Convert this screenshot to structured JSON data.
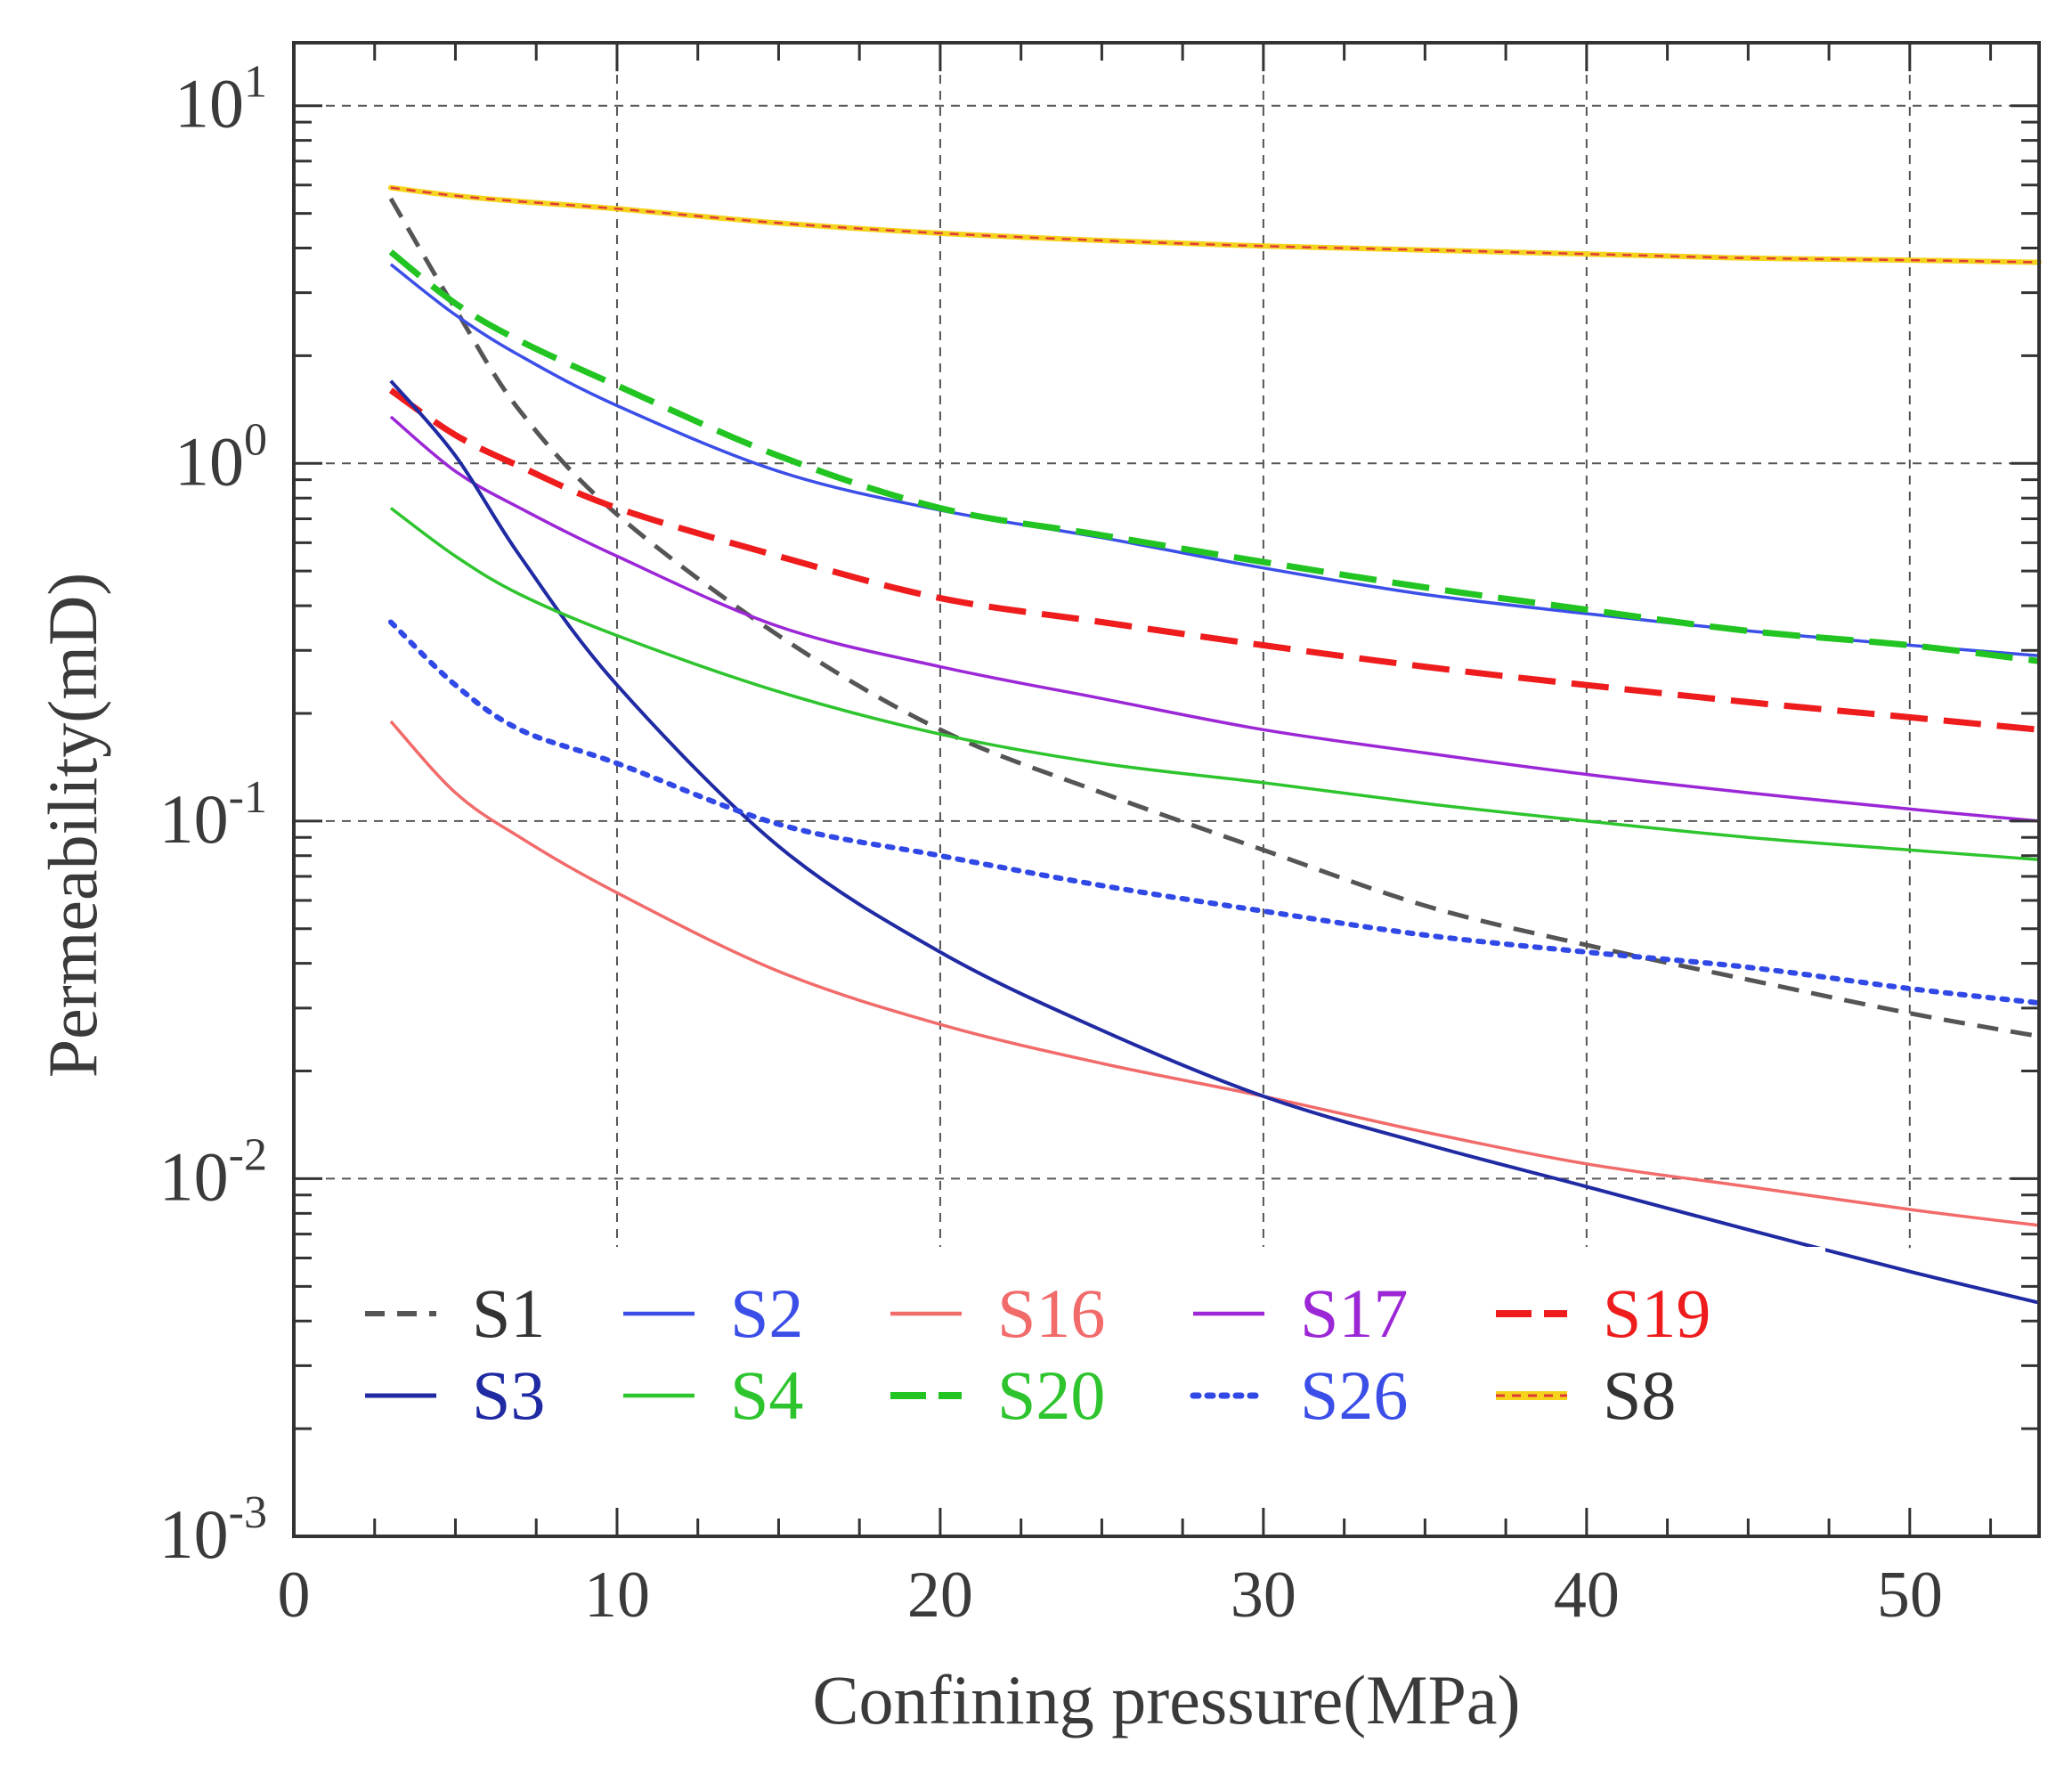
{
  "chart_data": {
    "type": "line",
    "title": "",
    "xlabel": "Confining pressure(MPa)",
    "ylabel": "Permeability(mD)",
    "xlim": [
      0,
      54
    ],
    "ylim": [
      0.001,
      15
    ],
    "yscale": "log",
    "grid": true,
    "legend_position": "bottom-left",
    "x_ticks": [
      {
        "value": 0,
        "label": "0"
      },
      {
        "value": 10,
        "label": "10"
      },
      {
        "value": 20,
        "label": "20"
      },
      {
        "value": 30,
        "label": "30"
      },
      {
        "value": 40,
        "label": "40"
      },
      {
        "value": 50,
        "label": "50"
      }
    ],
    "y_ticks": [
      {
        "value": 10,
        "base": "10",
        "exp": "1"
      },
      {
        "value": 1,
        "base": "10",
        "exp": "0"
      },
      {
        "value": 0.1,
        "base": "10",
        "exp": "-1"
      },
      {
        "value": 0.01,
        "base": "10",
        "exp": "-2"
      },
      {
        "value": 0.001,
        "base": "10",
        "exp": "-3"
      }
    ],
    "x": [
      3,
      5,
      7,
      10,
      15,
      20,
      25,
      30,
      35,
      40,
      45,
      50,
      54
    ],
    "series": [
      {
        "name": "S1",
        "color": "#555555",
        "style": "dashed",
        "width": 5,
        "values": [
          5.5,
          2.7,
          1.4,
          0.72,
          0.33,
          0.18,
          0.12,
          0.083,
          0.058,
          0.045,
          0.036,
          0.029,
          0.025
        ]
      },
      {
        "name": "S2",
        "color": "#3b4fe8",
        "style": "solid",
        "width": 3.5,
        "values": [
          3.6,
          2.6,
          2.0,
          1.45,
          0.95,
          0.74,
          0.62,
          0.51,
          0.43,
          0.38,
          0.34,
          0.31,
          0.29
        ]
      },
      {
        "name": "S16",
        "color": "#f26b6b",
        "style": "solid",
        "width": 3.5,
        "values": [
          0.19,
          0.12,
          0.09,
          0.063,
          0.038,
          0.027,
          0.021,
          0.017,
          0.0135,
          0.011,
          0.0095,
          0.0082,
          0.0074
        ]
      },
      {
        "name": "S17",
        "color": "#9b27d6",
        "style": "solid",
        "width": 3.5,
        "values": [
          1.35,
          0.95,
          0.75,
          0.55,
          0.35,
          0.27,
          0.22,
          0.18,
          0.155,
          0.135,
          0.12,
          0.108,
          0.1
        ]
      },
      {
        "name": "S19",
        "color": "#ee1c1c",
        "style": "longdash",
        "width": 7,
        "values": [
          1.6,
          1.2,
          0.98,
          0.75,
          0.55,
          0.42,
          0.36,
          0.31,
          0.27,
          0.24,
          0.215,
          0.195,
          0.18
        ]
      },
      {
        "name": "S8",
        "color": "#f5d31d",
        "accent": "#e03a3a",
        "style": "banded",
        "width": 6,
        "values": [
          5.9,
          5.6,
          5.4,
          5.15,
          4.7,
          4.4,
          4.2,
          4.05,
          3.95,
          3.85,
          3.75,
          3.7,
          3.65
        ]
      },
      {
        "name": "S3",
        "color": "#1f2aa3",
        "style": "solid",
        "width": 4,
        "values": [
          1.7,
          1.05,
          0.55,
          0.24,
          0.085,
          0.043,
          0.026,
          0.017,
          0.0125,
          0.0095,
          0.0072,
          0.0055,
          0.0045
        ]
      },
      {
        "name": "S4",
        "color": "#2ec42e",
        "style": "solid",
        "width": 3.5,
        "values": [
          0.75,
          0.55,
          0.43,
          0.33,
          0.23,
          0.175,
          0.145,
          0.128,
          0.112,
          0.1,
          0.09,
          0.083,
          0.078
        ]
      },
      {
        "name": "S20",
        "color": "#22c422",
        "style": "longdash",
        "width": 7,
        "values": [
          3.9,
          2.8,
          2.2,
          1.65,
          1.05,
          0.75,
          0.63,
          0.53,
          0.45,
          0.39,
          0.34,
          0.31,
          0.28
        ]
      },
      {
        "name": "S26",
        "color": "#3048e6",
        "style": "dotted",
        "width": 6,
        "values": [
          0.36,
          0.24,
          0.18,
          0.145,
          0.098,
          0.08,
          0.066,
          0.056,
          0.048,
          0.043,
          0.039,
          0.034,
          0.031
        ]
      }
    ]
  }
}
